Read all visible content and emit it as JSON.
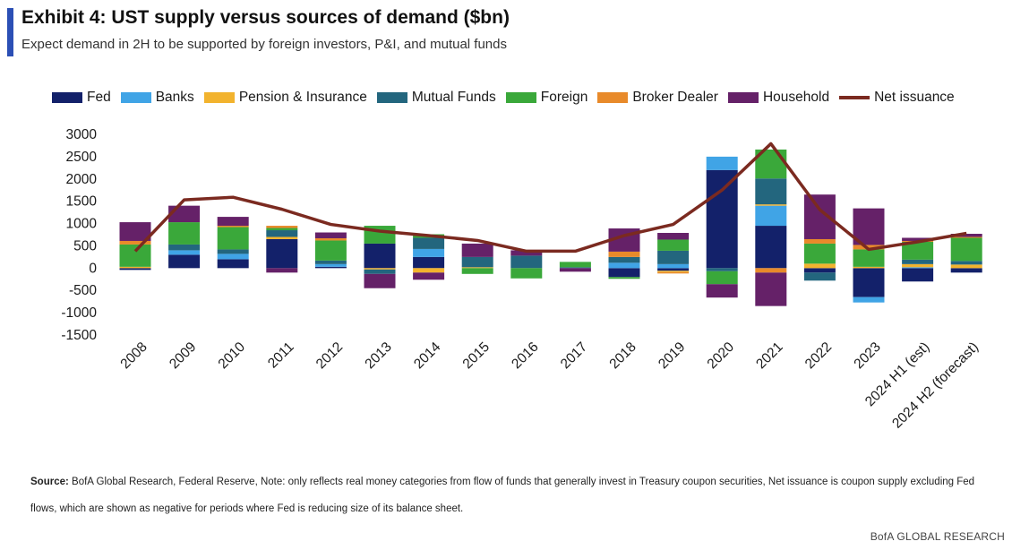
{
  "header": {
    "title": "Exhibit 4: UST supply versus sources of demand ($bn)",
    "subtitle": "Expect demand in 2H to be supported by foreign investors, P&I, and mutual funds"
  },
  "colors": {
    "accent": "#2B4FB5",
    "net_issuance": "#7B2A20"
  },
  "chart_data": {
    "type": "bar",
    "stacked": true,
    "categories": [
      "2008",
      "2009",
      "2010",
      "2011",
      "2012",
      "2013",
      "2014",
      "2015",
      "2016",
      "2017",
      "2018",
      "2019",
      "2020",
      "2021",
      "2022",
      "2023",
      "2024 H1 (est)",
      "2024 H2 (forecast)"
    ],
    "ylim": [
      -1500,
      3000
    ],
    "yticks": [
      3000,
      2500,
      2000,
      1500,
      1000,
      500,
      0,
      -500,
      -1000,
      -1500
    ],
    "legend_position": "top",
    "series": [
      {
        "name": "Fed",
        "color": "#13216A",
        "values": [
          -40,
          300,
          200,
          650,
          30,
          550,
          250,
          0,
          0,
          0,
          -200,
          -60,
          2200,
          950,
          -100,
          -650,
          -300,
          -100
        ]
      },
      {
        "name": "Banks",
        "color": "#40A4E6",
        "values": [
          0,
          100,
          120,
          0,
          60,
          0,
          180,
          0,
          0,
          0,
          120,
          90,
          300,
          450,
          0,
          -120,
          20,
          0
        ]
      },
      {
        "name": "Pension & Insurance",
        "color": "#F2B32E",
        "values": [
          30,
          0,
          0,
          50,
          0,
          -30,
          -100,
          20,
          0,
          0,
          0,
          -30,
          0,
          30,
          100,
          30,
          70,
          80
        ]
      },
      {
        "name": "Mutual Funds",
        "color": "#23667E",
        "values": [
          0,
          130,
          100,
          150,
          80,
          -100,
          250,
          230,
          280,
          20,
          130,
          300,
          -70,
          580,
          -180,
          0,
          100,
          80
        ]
      },
      {
        "name": "Foreign",
        "color": "#3AA83A",
        "values": [
          500,
          500,
          500,
          50,
          450,
          400,
          80,
          -130,
          -230,
          120,
          -40,
          250,
          -290,
          650,
          450,
          390,
          400,
          520
        ]
      },
      {
        "name": "Broker Dealer",
        "color": "#E88A2A",
        "values": [
          80,
          0,
          30,
          50,
          50,
          0,
          0,
          0,
          0,
          0,
          120,
          -30,
          0,
          -100,
          100,
          100,
          20,
          20
        ]
      },
      {
        "name": "Household",
        "color": "#652168",
        "values": [
          420,
          370,
          200,
          -100,
          130,
          -320,
          -160,
          300,
          120,
          -80,
          520,
          150,
          -300,
          -750,
          1000,
          820,
          70,
          70
        ]
      }
    ],
    "line": {
      "name": "Net issuance",
      "color": "#7B2A20",
      "values": [
        380,
        1530,
        1590,
        1320,
        980,
        830,
        730,
        620,
        380,
        380,
        730,
        980,
        1750,
        2790,
        1310,
        420,
        590,
        780
      ]
    }
  },
  "footer": {
    "source_label": "Source:",
    "source_text": " BofA Global Research, Federal Reserve, Note: only reflects real money categories from flow of funds that generally invest in Treasury coupon securities, Net issuance is coupon supply excluding Fed flows, which are shown as negative for periods where Fed is reducing size of its balance sheet.",
    "brand": "BofA GLOBAL RESEARCH"
  }
}
